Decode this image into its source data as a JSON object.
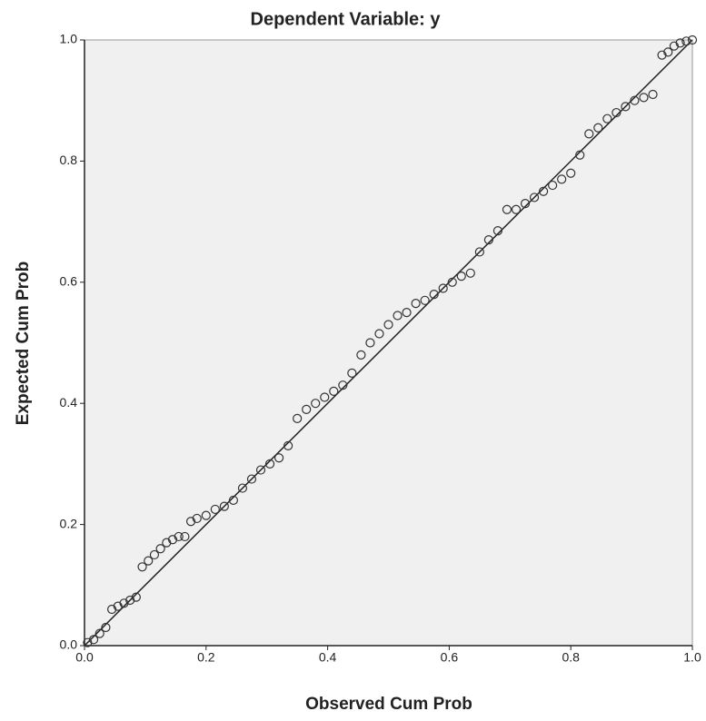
{
  "chart_data": {
    "type": "scatter",
    "title": "Dependent Variable: y",
    "x_label": "Observed Cum Prob",
    "y_label": "Expected Cum Prob",
    "xlim": [
      0,
      1
    ],
    "ylim": [
      0,
      1
    ],
    "xticks": [
      {
        "value": 0,
        "label": "0.0"
      },
      0.2,
      0.4,
      0.6,
      0.8,
      {
        "value": 1,
        "label": "1.0"
      }
    ],
    "yticks": [
      {
        "value": 0,
        "label": "0.0"
      },
      0.2,
      0.4,
      0.6,
      0.8,
      {
        "value": 1,
        "label": "1.0"
      }
    ],
    "color": "#333333",
    "x": [
      0.005,
      0.015,
      0.025,
      0.035,
      0.045,
      0.055,
      0.065,
      0.075,
      0.085,
      0.095,
      0.105,
      0.115,
      0.125,
      0.135,
      0.145,
      0.155,
      0.165,
      0.175,
      0.185,
      0.2,
      0.215,
      0.23,
      0.245,
      0.26,
      0.275,
      0.29,
      0.305,
      0.32,
      0.335,
      0.35,
      0.365,
      0.38,
      0.395,
      0.41,
      0.425,
      0.44,
      0.455,
      0.47,
      0.485,
      0.5,
      0.515,
      0.53,
      0.545,
      0.56,
      0.575,
      0.59,
      0.605,
      0.62,
      0.635,
      0.65,
      0.665,
      0.68,
      0.695,
      0.71,
      0.725,
      0.74,
      0.755,
      0.77,
      0.785,
      0.8,
      0.815,
      0.83,
      0.845,
      0.86,
      0.875,
      0.89,
      0.905,
      0.92,
      0.935,
      0.95,
      0.96,
      0.97,
      0.98,
      0.99,
      1.0
    ],
    "values": [
      0.005,
      0.01,
      0.02,
      0.03,
      0.06,
      0.065,
      0.07,
      0.075,
      0.08,
      0.13,
      0.14,
      0.15,
      0.16,
      0.17,
      0.175,
      0.18,
      0.18,
      0.205,
      0.21,
      0.215,
      0.225,
      0.23,
      0.24,
      0.26,
      0.275,
      0.29,
      0.3,
      0.31,
      0.33,
      0.375,
      0.39,
      0.4,
      0.41,
      0.42,
      0.43,
      0.45,
      0.48,
      0.5,
      0.515,
      0.53,
      0.545,
      0.55,
      0.565,
      0.57,
      0.58,
      0.59,
      0.6,
      0.61,
      0.615,
      0.65,
      0.67,
      0.685,
      0.72,
      0.72,
      0.73,
      0.74,
      0.75,
      0.76,
      0.77,
      0.78,
      0.81,
      0.845,
      0.855,
      0.87,
      0.88,
      0.89,
      0.9,
      0.905,
      0.91,
      0.975,
      0.98,
      0.99,
      0.995,
      0.998,
      1.0
    ]
  }
}
